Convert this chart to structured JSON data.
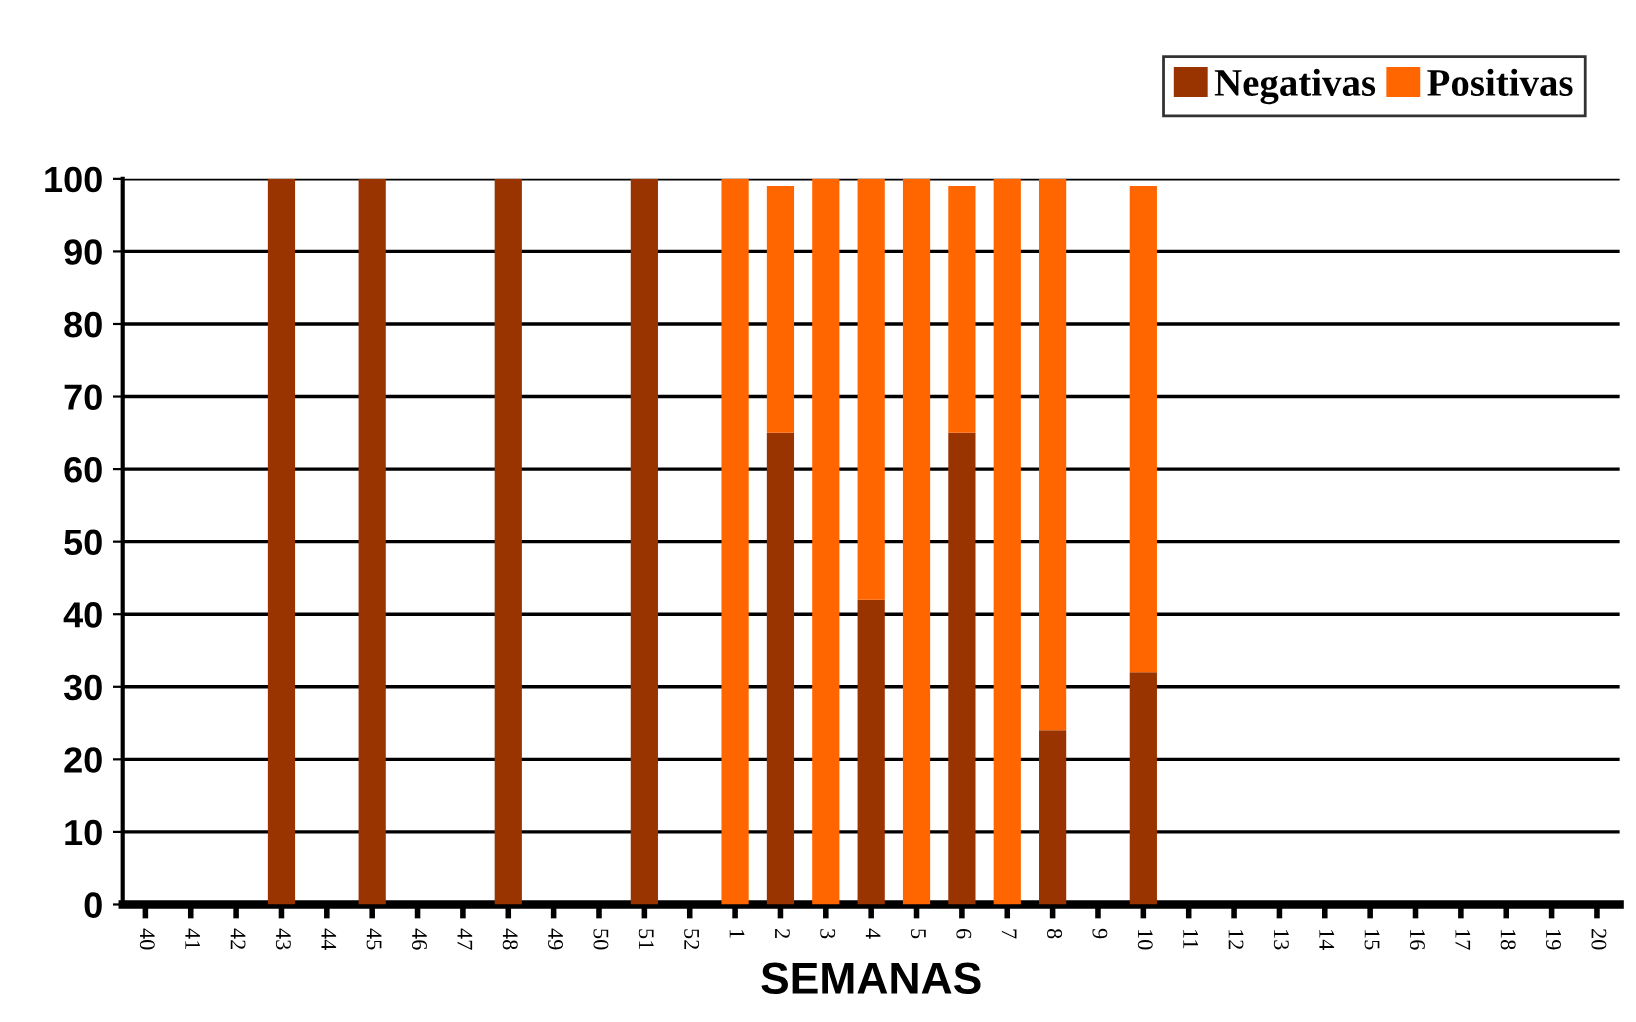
{
  "chart_data": {
    "type": "bar",
    "stacked": true,
    "xlabel": "SEMANAS",
    "categories": [
      "40",
      "41",
      "42",
      "43",
      "44",
      "45",
      "46",
      "47",
      "48",
      "49",
      "50",
      "51",
      "52",
      "1",
      "2",
      "3",
      "4",
      "5",
      "6",
      "7",
      "8",
      "9",
      "10",
      "11",
      "12",
      "13",
      "14",
      "15",
      "16",
      "17",
      "18",
      "19",
      "20"
    ],
    "series": [
      {
        "name": "Negativas",
        "color": "#993300",
        "values": [
          null,
          null,
          null,
          100,
          null,
          100,
          null,
          null,
          100,
          null,
          null,
          100,
          null,
          null,
          65,
          null,
          42,
          null,
          65,
          null,
          24,
          null,
          32,
          null,
          null,
          null,
          null,
          null,
          null,
          null,
          null,
          null,
          null
        ]
      },
      {
        "name": "Positivas",
        "color": "#ff6600",
        "values": [
          null,
          null,
          null,
          null,
          null,
          null,
          null,
          null,
          null,
          null,
          null,
          null,
          null,
          100,
          34,
          100,
          58,
          100,
          34,
          100,
          76,
          null,
          67,
          null,
          null,
          null,
          null,
          null,
          null,
          null,
          null,
          null,
          null
        ]
      }
    ],
    "ylim": [
      0,
      100
    ],
    "yticks": [
      0,
      10,
      20,
      30,
      40,
      50,
      60,
      70,
      80,
      90,
      100
    ],
    "grid": "y",
    "legend": "top right"
  }
}
